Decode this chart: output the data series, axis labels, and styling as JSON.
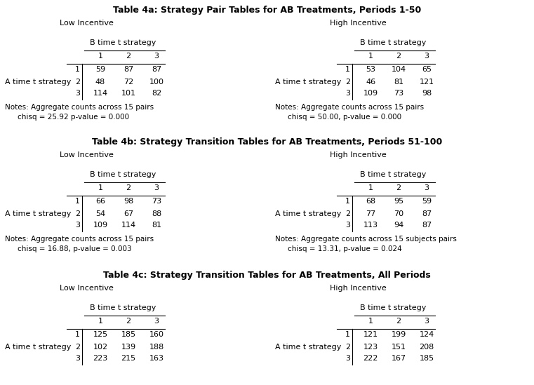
{
  "title_4a": "Table 4a: Strategy Pair Tables for AB Treatments, Periods 1-50",
  "title_4b": "Table 4b: Strategy Transition Tables for AB Treatments, Periods 51-100",
  "title_4c": "Table 4c: Strategy Transition Tables for AB Treatments, All Periods",
  "low_incentive": "Low Incentive",
  "high_incentive": "High Incentive",
  "b_header": "B time t strategy",
  "a_label": "A time t strategy",
  "col_headers": [
    "1",
    "2",
    "3"
  ],
  "row_headers": [
    "1",
    "2",
    "3"
  ],
  "table_4a_low": [
    [
      59,
      87,
      87
    ],
    [
      48,
      72,
      100
    ],
    [
      114,
      101,
      82
    ]
  ],
  "table_4a_high": [
    [
      53,
      104,
      65
    ],
    [
      46,
      81,
      121
    ],
    [
      109,
      73,
      98
    ]
  ],
  "notes_4a_low_1": "Notes: Aggregate counts across 15 pairs",
  "notes_4a_low_2": "chisq = 25.92 p-value = 0.000",
  "notes_4a_high_1": "Notes: Aggregate counts across 15 pairs",
  "notes_4a_high_2": "chisq = 50.00, p-value = 0.000",
  "table_4b_low": [
    [
      66,
      98,
      73
    ],
    [
      54,
      67,
      88
    ],
    [
      109,
      114,
      81
    ]
  ],
  "table_4b_high": [
    [
      68,
      95,
      59
    ],
    [
      77,
      70,
      87
    ],
    [
      113,
      94,
      87
    ]
  ],
  "notes_4b_low_1": "Notes: Aggregate counts across 15 pairs",
  "notes_4b_low_2": "chisq = 16.88, p-value = 0.003",
  "notes_4b_high_1": "Notes: Aggregate counts across 15 subjects pairs",
  "notes_4b_high_2": "chisq = 13.31, p-value = 0.024",
  "table_4c_low": [
    [
      125,
      185,
      160
    ],
    [
      102,
      139,
      188
    ],
    [
      223,
      215,
      163
    ]
  ],
  "table_4c_high": [
    [
      121,
      199,
      124
    ],
    [
      123,
      151,
      208
    ],
    [
      222,
      167,
      185
    ]
  ],
  "fontsize": 8,
  "title_fontsize": 9,
  "notes_fontsize": 7.5
}
